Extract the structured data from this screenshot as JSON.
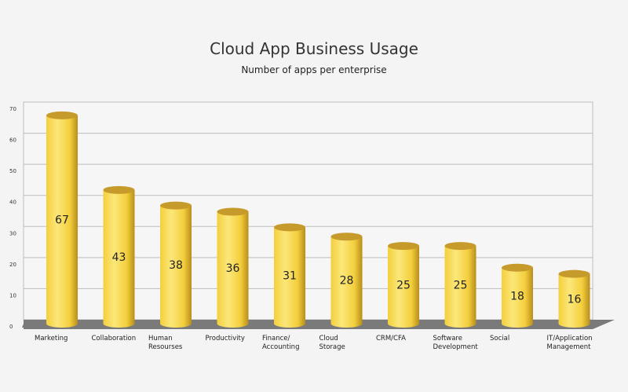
{
  "chart_data": {
    "type": "bar",
    "title": "Cloud App Business Usage",
    "subtitle": "Number of apps per enterprise",
    "categories": [
      [
        "Marketing"
      ],
      [
        "Collaboration"
      ],
      [
        "Human",
        "Resourses"
      ],
      [
        "Productivity"
      ],
      [
        "Finance/",
        "Accounting"
      ],
      [
        "Cloud",
        "Storage"
      ],
      [
        "CRM/CFA"
      ],
      [
        "Software",
        "Development"
      ],
      [
        "Social"
      ],
      [
        "IT/Application",
        "Management"
      ]
    ],
    "values": [
      67,
      43,
      38,
      36,
      31,
      28,
      25,
      25,
      18,
      16
    ],
    "ylim": [
      0,
      70
    ],
    "yticks": [
      0,
      10,
      20,
      30,
      40,
      50,
      60,
      70
    ],
    "grid": true,
    "colors": {
      "bar_light": "#fbe77a",
      "bar_mid": "#f4cf3c",
      "bar_dark": "#b88e1c",
      "bar_top": "#c79a2c",
      "floor": "#7a7a7a",
      "grid": "#bdbdbd"
    }
  }
}
